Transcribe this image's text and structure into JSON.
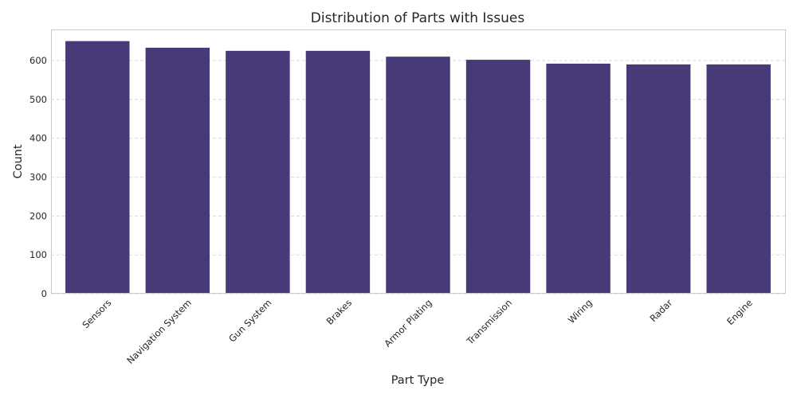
{
  "chart_data": {
    "type": "bar",
    "title": "Distribution of Parts with Issues",
    "xlabel": "Part Type",
    "ylabel": "Count",
    "categories": [
      "Sensors",
      "Navigation System",
      "Gun System",
      "Brakes",
      "Armor Plating",
      "Transmission",
      "Wiring",
      "Radar",
      "Engine"
    ],
    "values": [
      650,
      633,
      625,
      625,
      610,
      602,
      592,
      590,
      590
    ],
    "ylim": [
      0,
      680
    ],
    "yticks": [
      0,
      100,
      200,
      300,
      400,
      500,
      600
    ],
    "grid": true,
    "bar_color": "#483a78"
  }
}
